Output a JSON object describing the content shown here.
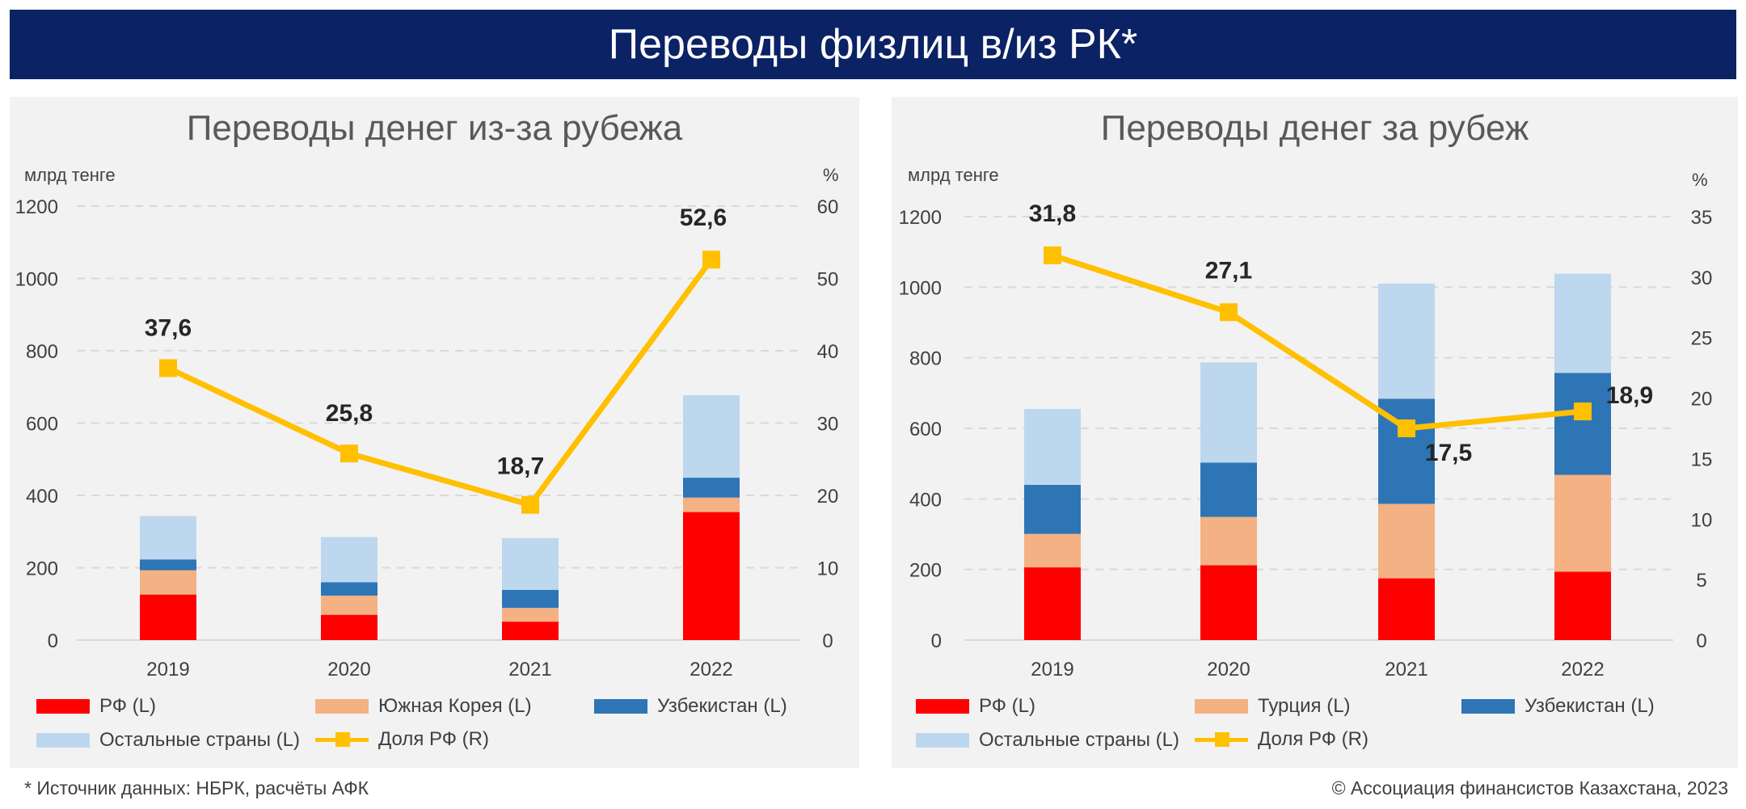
{
  "header": {
    "title": "Переводы физлиц в/из РК*"
  },
  "footer": {
    "source": "* Источник данных: НБРК, расчёты АФК",
    "copyright": "© Ассоциация финансистов Казахстана, 2023"
  },
  "colors": {
    "header": "#0b2265",
    "rf": "#ff0000",
    "second": "#f4b183",
    "uzb": "#2e75b6",
    "others": "#bdd7ee",
    "share": "#ffc000"
  },
  "chart_data": [
    {
      "type": "bar",
      "stacked": true,
      "title": "Переводы денег из-за рубежа",
      "ylabel": "млрд тенге",
      "y2label": "%",
      "ylim": [
        0,
        1200
      ],
      "y2lim": [
        0,
        60
      ],
      "yticks": [
        "0",
        "200",
        "400",
        "600",
        "800",
        "1000",
        "1200"
      ],
      "y2ticks": [
        "0",
        "10",
        "20",
        "30",
        "40",
        "50",
        "60"
      ],
      "categories": [
        "2019",
        "2020",
        "2021",
        "2022"
      ],
      "grid": true,
      "legend": "bottom",
      "series": [
        {
          "name": "РФ (L)",
          "values": [
            126,
            70,
            51,
            354
          ]
        },
        {
          "name": "Южная Корея (L)",
          "values": [
            67,
            53,
            38,
            40
          ]
        },
        {
          "name": "Узбекистан (L)",
          "values": [
            30,
            37,
            50,
            55
          ]
        },
        {
          "name": "Остальные страны (L)",
          "values": [
            120,
            125,
            143,
            228
          ]
        }
      ],
      "line": {
        "name": "Доля РФ (R)",
        "values": [
          37.6,
          25.8,
          18.7,
          52.6
        ],
        "labels": [
          "37,6",
          "25,8",
          "18,7",
          "52,6"
        ]
      }
    },
    {
      "type": "bar",
      "stacked": true,
      "title": "Переводы денег за рубеж",
      "ylabel": "млрд тенге",
      "y2label": "%",
      "ylim": [
        0,
        1200
      ],
      "y2lim": [
        0,
        35
      ],
      "yticks": [
        "0",
        "200",
        "400",
        "600",
        "800",
        "1000",
        "1200"
      ],
      "y2ticks": [
        "0",
        "5",
        "10",
        "15",
        "20",
        "25",
        "30",
        "35"
      ],
      "categories": [
        "2019",
        "2020",
        "2021",
        "2022"
      ],
      "grid": true,
      "legend": "bottom",
      "series": [
        {
          "name": "РФ (L)",
          "values": [
            206,
            212,
            175,
            194
          ]
        },
        {
          "name": "Турция (L)",
          "values": [
            95,
            137,
            211,
            274
          ]
        },
        {
          "name": "Узбекистан (L)",
          "values": [
            139,
            154,
            298,
            289
          ]
        },
        {
          "name": "Остальные страны (L)",
          "values": [
            215,
            284,
            326,
            281
          ]
        }
      ],
      "line": {
        "name": "Доля РФ (R)",
        "values": [
          31.8,
          27.1,
          17.5,
          18.9
        ],
        "labels": [
          "31,8",
          "27,1",
          "17,5",
          "18,9"
        ]
      }
    }
  ]
}
